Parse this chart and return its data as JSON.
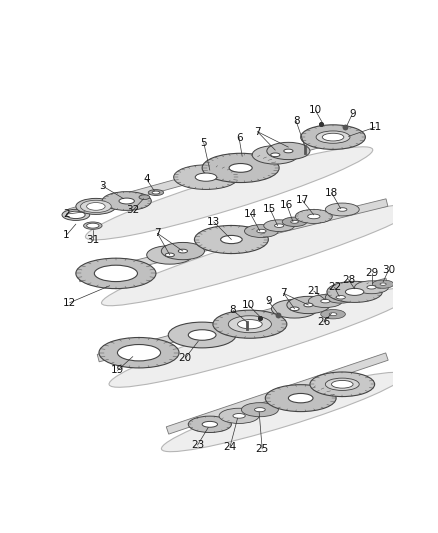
{
  "bg_color": "#ffffff",
  "ec": "#444444",
  "shaft_fill": "#e8e8e8",
  "gear_fill": "#d0d0d0",
  "ring_fill": "#c8c8c8",
  "dark_fill": "#b0b0b0",
  "white": "#ffffff",
  "arm_fill": "#e0e0e0",
  "arm_edge": "#888888",
  "shading": "#909090",
  "label_color": "#111111",
  "label_size": 7.5,
  "leader_lw": 0.55
}
